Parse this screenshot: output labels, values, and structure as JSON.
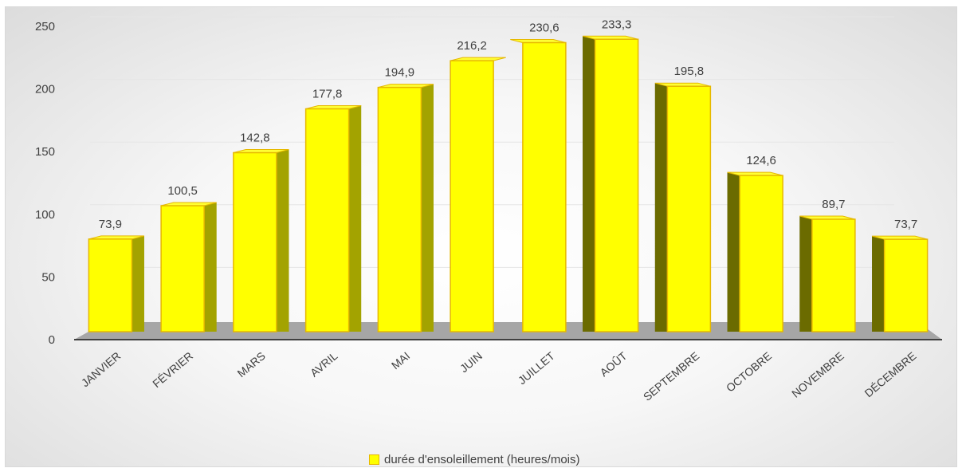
{
  "chart_data": {
    "type": "bar",
    "categories": [
      "JANVIER",
      "FÉVRIER",
      "MARS",
      "AVRIL",
      "MAI",
      "JUIN",
      "JUILLET",
      "AOÛT",
      "SEPTEMBRE",
      "OCTOBRE",
      "NOVEMBRE",
      "DÉCEMBRE"
    ],
    "series": [
      {
        "name": "durée d'ensoleillement (heures/mois)",
        "values": [
          73.9,
          100.5,
          142.8,
          177.8,
          194.9,
          216.2,
          230.6,
          233.3,
          195.8,
          124.6,
          89.7,
          73.7
        ],
        "data_labels": [
          "73,9",
          "100,5",
          "142,8",
          "177,8",
          "194,9",
          "216,2",
          "230,6",
          "233,3",
          "195,8",
          "124,6",
          "89,7",
          "73,7"
        ]
      }
    ],
    "ylim": [
      0,
      250
    ],
    "yticks": [
      0,
      50,
      100,
      150,
      200,
      250
    ],
    "grid": true,
    "legend_position": "bottom",
    "colors": {
      "bar_face": "#ffff00",
      "bar_edge": "#e6b800",
      "bar_side": "#a3a300"
    }
  }
}
